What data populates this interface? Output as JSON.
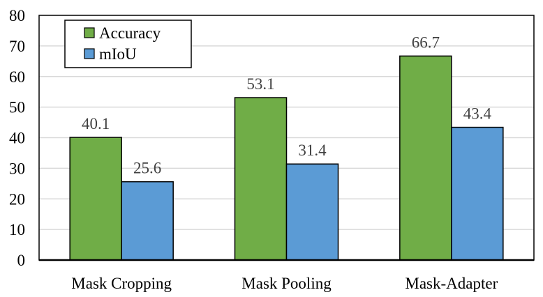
{
  "chart_data": {
    "type": "bar",
    "title": "",
    "xlabel": "",
    "ylabel": "",
    "categories": [
      "Mask Cropping",
      "Mask Pooling",
      "Mask-Adapter"
    ],
    "series": [
      {
        "name": "Accuracy",
        "values": [
          40.1,
          53.1,
          66.7
        ],
        "color": "#70AD47"
      },
      {
        "name": "mIoU",
        "values": [
          25.6,
          31.4,
          43.4
        ],
        "color": "#5B9BD5"
      }
    ],
    "ylim": [
      0,
      80
    ],
    "yticks": [
      0,
      10,
      20,
      30,
      40,
      50,
      60,
      70,
      80
    ],
    "grid": true,
    "legend": "top-left",
    "data_labels": true
  }
}
